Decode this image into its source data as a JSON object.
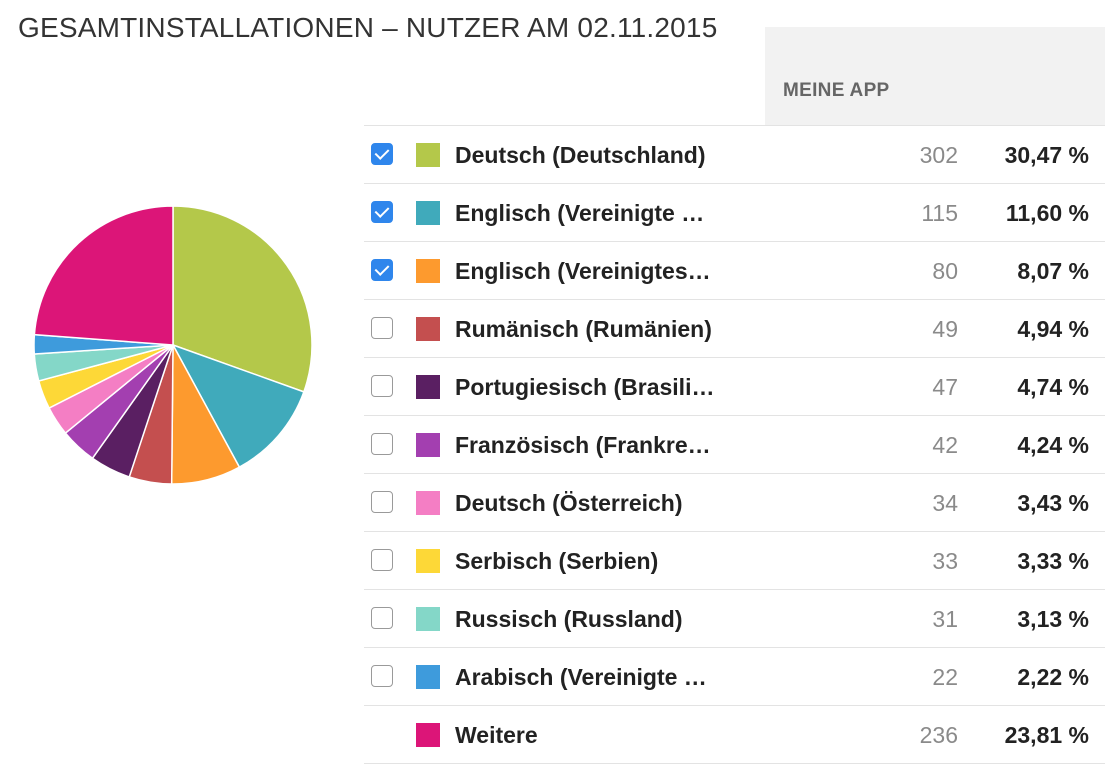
{
  "title": "GESAMTINSTALLATIONEN – NUTZER AM 02.11.2015",
  "column_header": "MEINE APP",
  "rows": [
    {
      "label": "Deutsch (Deutschland)",
      "count": "302",
      "percent": "30,47 %",
      "color": "#b4c84a",
      "checked": true,
      "has_checkbox": true
    },
    {
      "label": "Englisch (Vereinigte …",
      "count": "115",
      "percent": "11,60 %",
      "color": "#40aabb",
      "checked": true,
      "has_checkbox": true
    },
    {
      "label": "Englisch (Vereinigtes…",
      "count": "80",
      "percent": "8,07 %",
      "color": "#fd9a2e",
      "checked": true,
      "has_checkbox": true
    },
    {
      "label": "Rumänisch (Rumänien)",
      "count": "49",
      "percent": "4,94 %",
      "color": "#c44f4f",
      "checked": false,
      "has_checkbox": true
    },
    {
      "label": "Portugiesisch (Brasili…",
      "count": "47",
      "percent": "4,74 %",
      "color": "#5a1f62",
      "checked": false,
      "has_checkbox": true
    },
    {
      "label": "Französisch (Frankre…",
      "count": "42",
      "percent": "4,24 %",
      "color": "#a33fb0",
      "checked": false,
      "has_checkbox": true
    },
    {
      "label": "Deutsch (Österreich)",
      "count": "34",
      "percent": "3,43 %",
      "color": "#f47ec4",
      "checked": false,
      "has_checkbox": true
    },
    {
      "label": "Serbisch (Serbien)",
      "count": "33",
      "percent": "3,33 %",
      "color": "#fdd837",
      "checked": false,
      "has_checkbox": true
    },
    {
      "label": "Russisch (Russland)",
      "count": "31",
      "percent": "3,13 %",
      "color": "#84d7c8",
      "checked": false,
      "has_checkbox": true
    },
    {
      "label": "Arabisch (Vereinigte …",
      "count": "22",
      "percent": "2,22 %",
      "color": "#3e9bdc",
      "checked": false,
      "has_checkbox": true
    },
    {
      "label": "Weitere",
      "count": "236",
      "percent": "23,81 %",
      "color": "#dc1578",
      "checked": false,
      "has_checkbox": false
    }
  ],
  "chart_data": {
    "type": "pie",
    "categories": [
      "Deutsch (Deutschland)",
      "Englisch (Vereinigte …",
      "Englisch (Vereinigtes…",
      "Rumänisch (Rumänien)",
      "Portugiesisch (Brasili…",
      "Französisch (Frankre…",
      "Deutsch (Österreich)",
      "Serbisch (Serbien)",
      "Russisch (Russland)",
      "Arabisch (Vereinigte …",
      "Weitere"
    ],
    "values": [
      302,
      115,
      80,
      49,
      47,
      42,
      34,
      33,
      31,
      22,
      236
    ],
    "colors": [
      "#b4c84a",
      "#40aabb",
      "#fd9a2e",
      "#c44f4f",
      "#5a1f62",
      "#a33fb0",
      "#f47ec4",
      "#fdd837",
      "#84d7c8",
      "#3e9bdc",
      "#dc1578"
    ],
    "start_angle_deg": 0,
    "direction": "clockwise"
  }
}
